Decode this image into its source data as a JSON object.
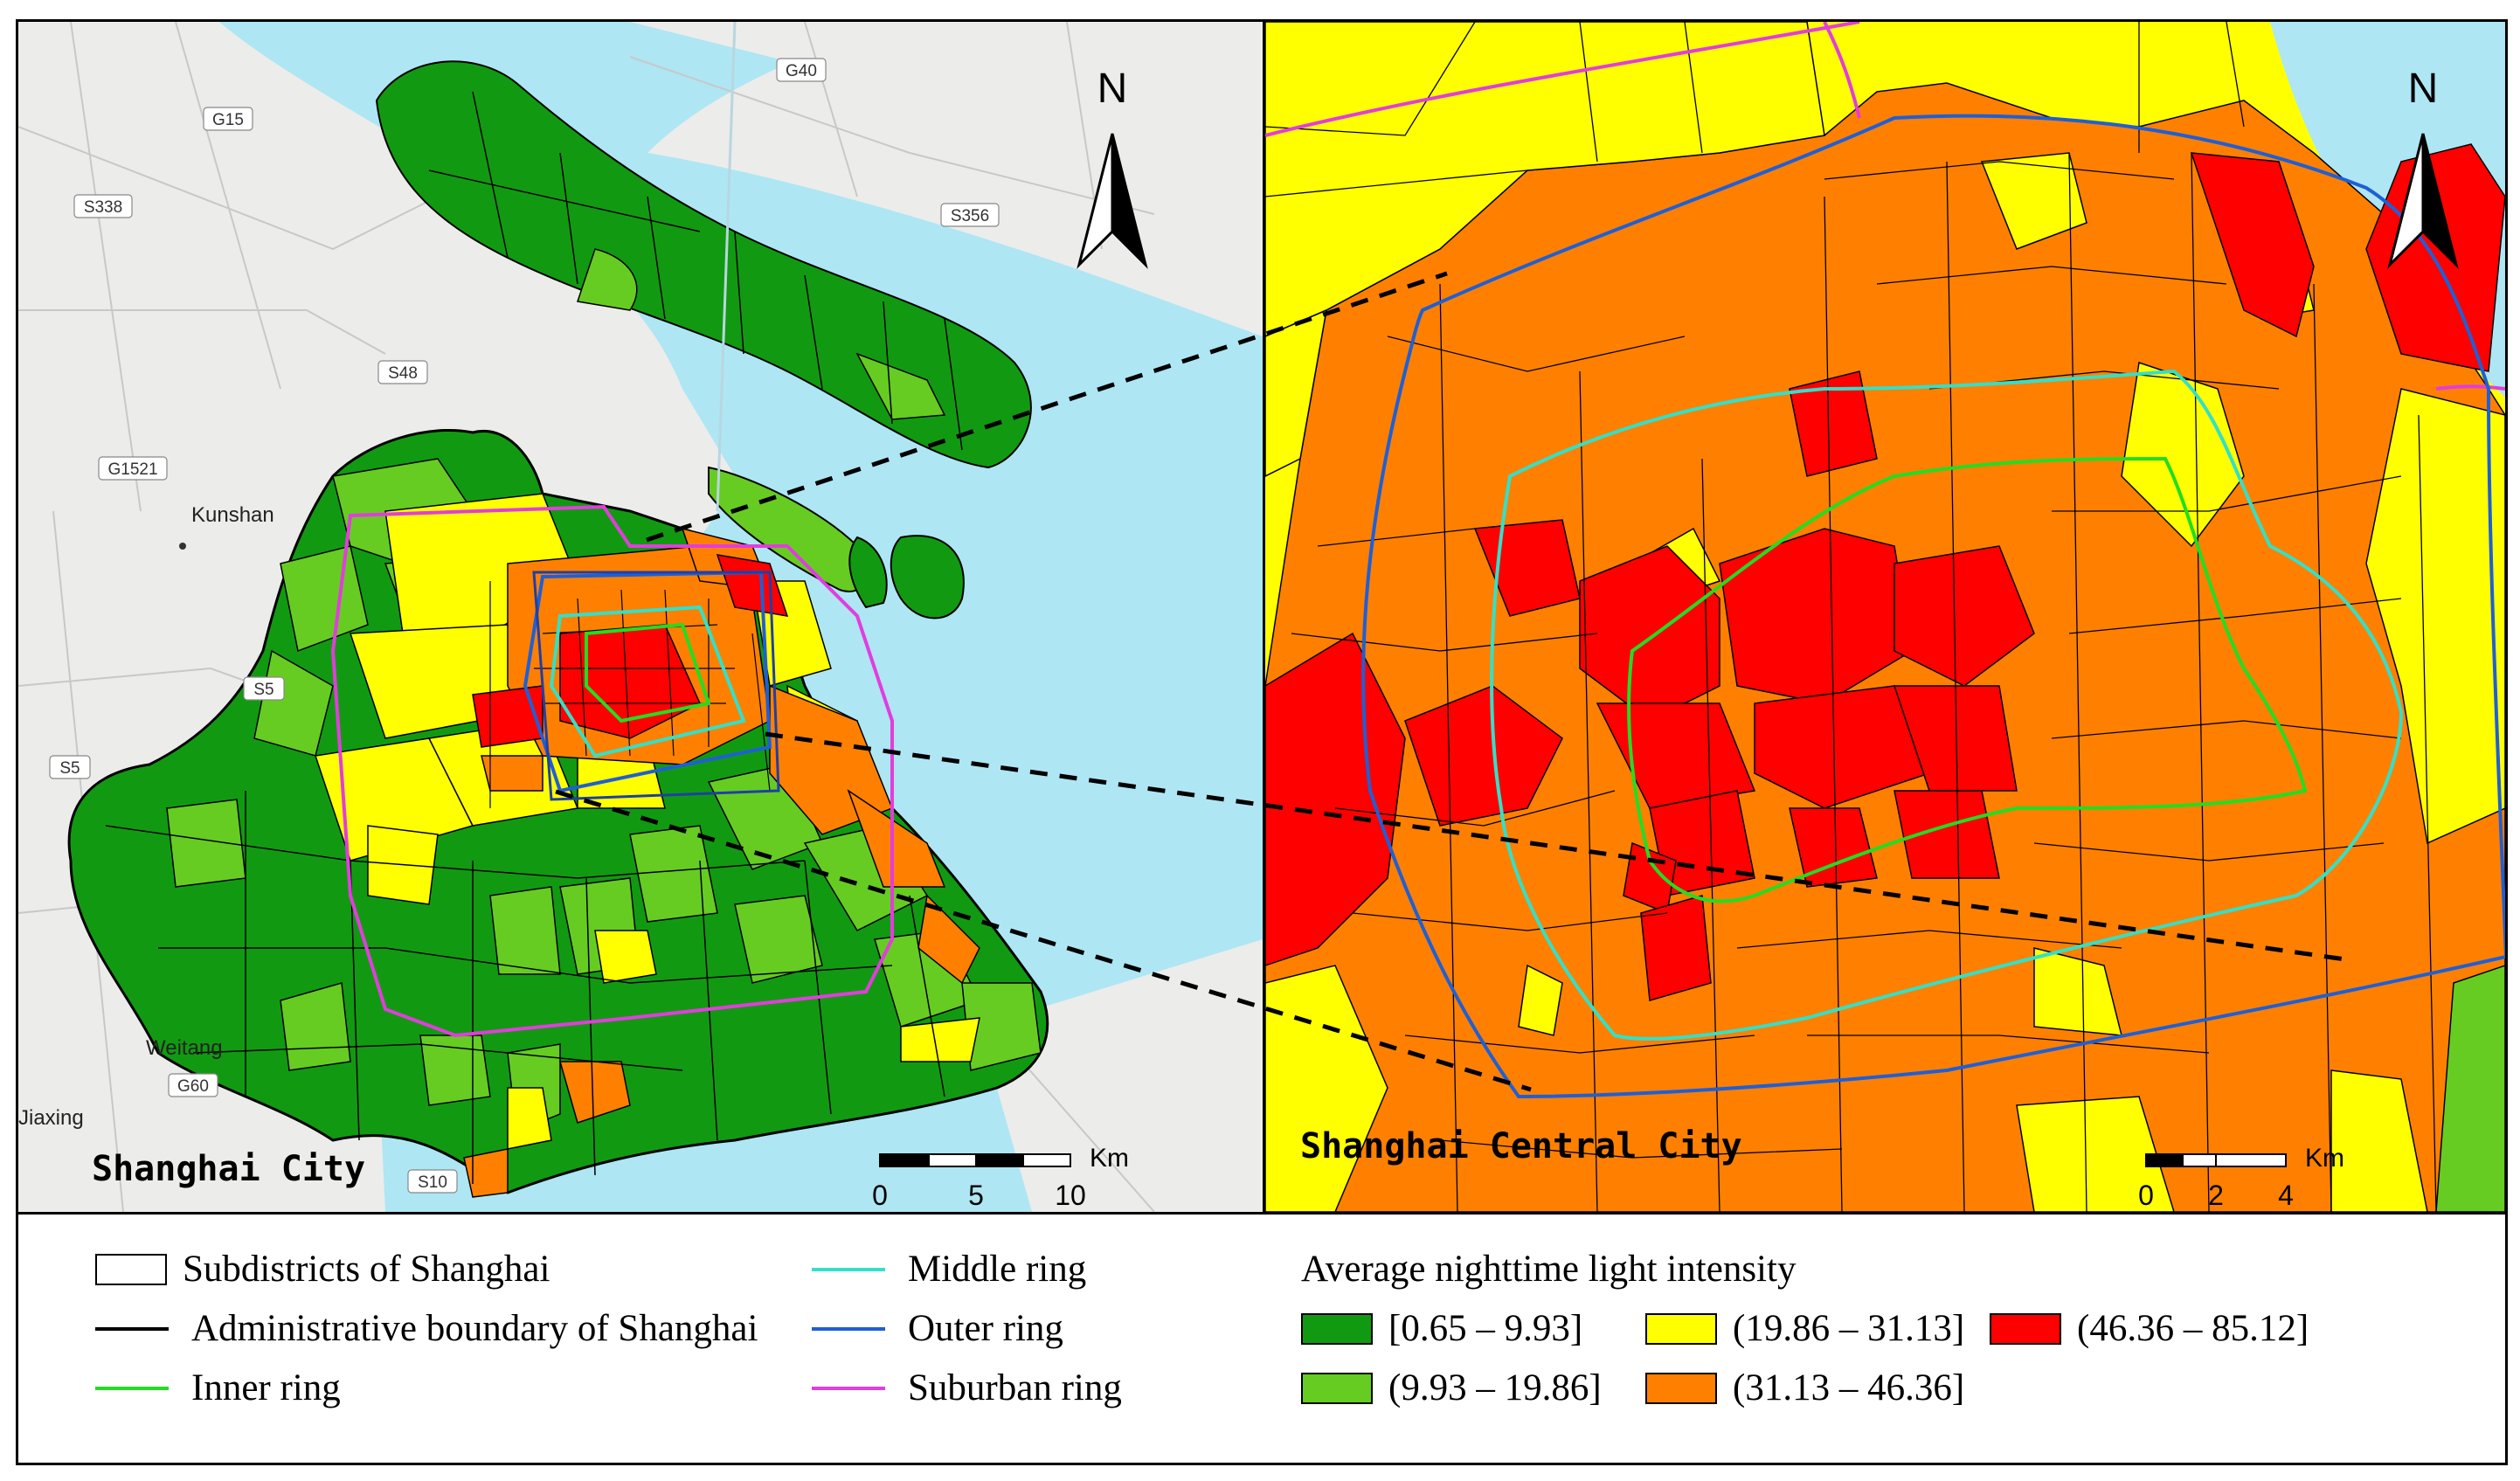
{
  "left_map": {
    "title": "Shanghai City",
    "north": "N",
    "scale": {
      "unit": "Km",
      "ticks": [
        "0",
        "5",
        "10"
      ]
    },
    "places": [
      {
        "name": "Kunshan",
        "kind": "city"
      },
      {
        "name": "Weitang",
        "kind": "city"
      },
      {
        "name": "Jiaxing",
        "kind": "city"
      },
      {
        "name": "G15",
        "kind": "road"
      },
      {
        "name": "G40",
        "kind": "road"
      },
      {
        "name": "S338",
        "kind": "road"
      },
      {
        "name": "S356",
        "kind": "road"
      },
      {
        "name": "S48",
        "kind": "road"
      },
      {
        "name": "G1521",
        "kind": "road"
      },
      {
        "name": "S5",
        "kind": "road"
      },
      {
        "name": "G60",
        "kind": "road"
      },
      {
        "name": "S10",
        "kind": "road"
      }
    ]
  },
  "right_map": {
    "title": "Shanghai Central City",
    "north": "N",
    "scale": {
      "unit": "Km",
      "ticks": [
        "0",
        "2",
        "4"
      ]
    }
  },
  "legend": {
    "lines": [
      {
        "label": "Subdistricts of Shanghai",
        "kind": "box",
        "color": "#ffffff"
      },
      {
        "label": "Administrative boundary of Shanghai",
        "kind": "line",
        "color": "#000000"
      },
      {
        "label": "Inner ring",
        "kind": "line",
        "color": "#22dd22"
      },
      {
        "label": "Middle ring",
        "kind": "line",
        "color": "#33e0c8"
      },
      {
        "label": "Outer ring",
        "kind": "line",
        "color": "#1f5fd6"
      },
      {
        "label": "Suburban ring",
        "kind": "line",
        "color": "#e23ddd"
      }
    ],
    "intensity_title": "Average nighttime light intensity",
    "classes": [
      {
        "label": "[0.65 – 9.93]",
        "color": "#119a11"
      },
      {
        "label": "(9.93 – 19.86]",
        "color": "#66cc22"
      },
      {
        "label": "(19.86 – 31.13]",
        "color": "#ffff00"
      },
      {
        "label": "(31.13 – 46.36]",
        "color": "#ff8000"
      },
      {
        "label": "(46.36 – 85.12]",
        "color": "#ff0000"
      }
    ]
  }
}
